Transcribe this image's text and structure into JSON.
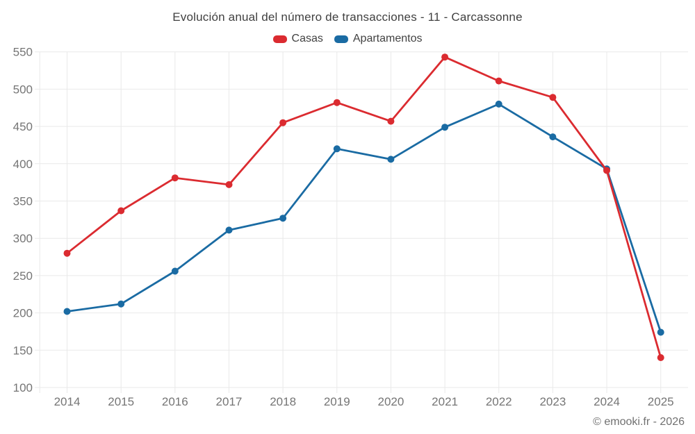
{
  "title": "Evolución anual del número de transacciones - 11 - Carcassonne",
  "footer": "© emooki.fr - 2026",
  "colors": {
    "casas": "#db2b30",
    "apartamentos": "#1a6ba3",
    "grid": "#e9e9e9",
    "tick_label": "#757575",
    "title_text": "#3f3f3f",
    "legend_text": "#424242",
    "footer_text": "#707070",
    "background": "#ffffff"
  },
  "legend": [
    {
      "label": "Casas",
      "color_key": "casas"
    },
    {
      "label": "Apartamentos",
      "color_key": "apartamentos"
    }
  ],
  "chart_data": {
    "type": "line",
    "title": "Evolución anual del número de transacciones - 11 - Carcassonne",
    "x": [
      2014,
      2015,
      2016,
      2017,
      2018,
      2019,
      2020,
      2021,
      2022,
      2023,
      2024,
      2025
    ],
    "series": [
      {
        "name": "Casas",
        "color_key": "casas",
        "values": [
          280,
          337,
          381,
          372,
          455,
          482,
          457,
          543,
          511,
          489,
          391,
          140
        ]
      },
      {
        "name": "Apartamentos",
        "color_key": "apartamentos",
        "values": [
          202,
          212,
          256,
          311,
          327,
          420,
          406,
          449,
          480,
          436,
          393,
          174
        ]
      }
    ],
    "xlabel": "",
    "ylabel": "",
    "ylim": [
      100,
      550
    ],
    "ytick_step": 50,
    "yticks": [
      100,
      150,
      200,
      250,
      300,
      350,
      400,
      450,
      500,
      550
    ],
    "grid": true,
    "legend_position": "top",
    "marker": "circle",
    "draw_order": [
      "Apartamentos",
      "Casas"
    ]
  }
}
